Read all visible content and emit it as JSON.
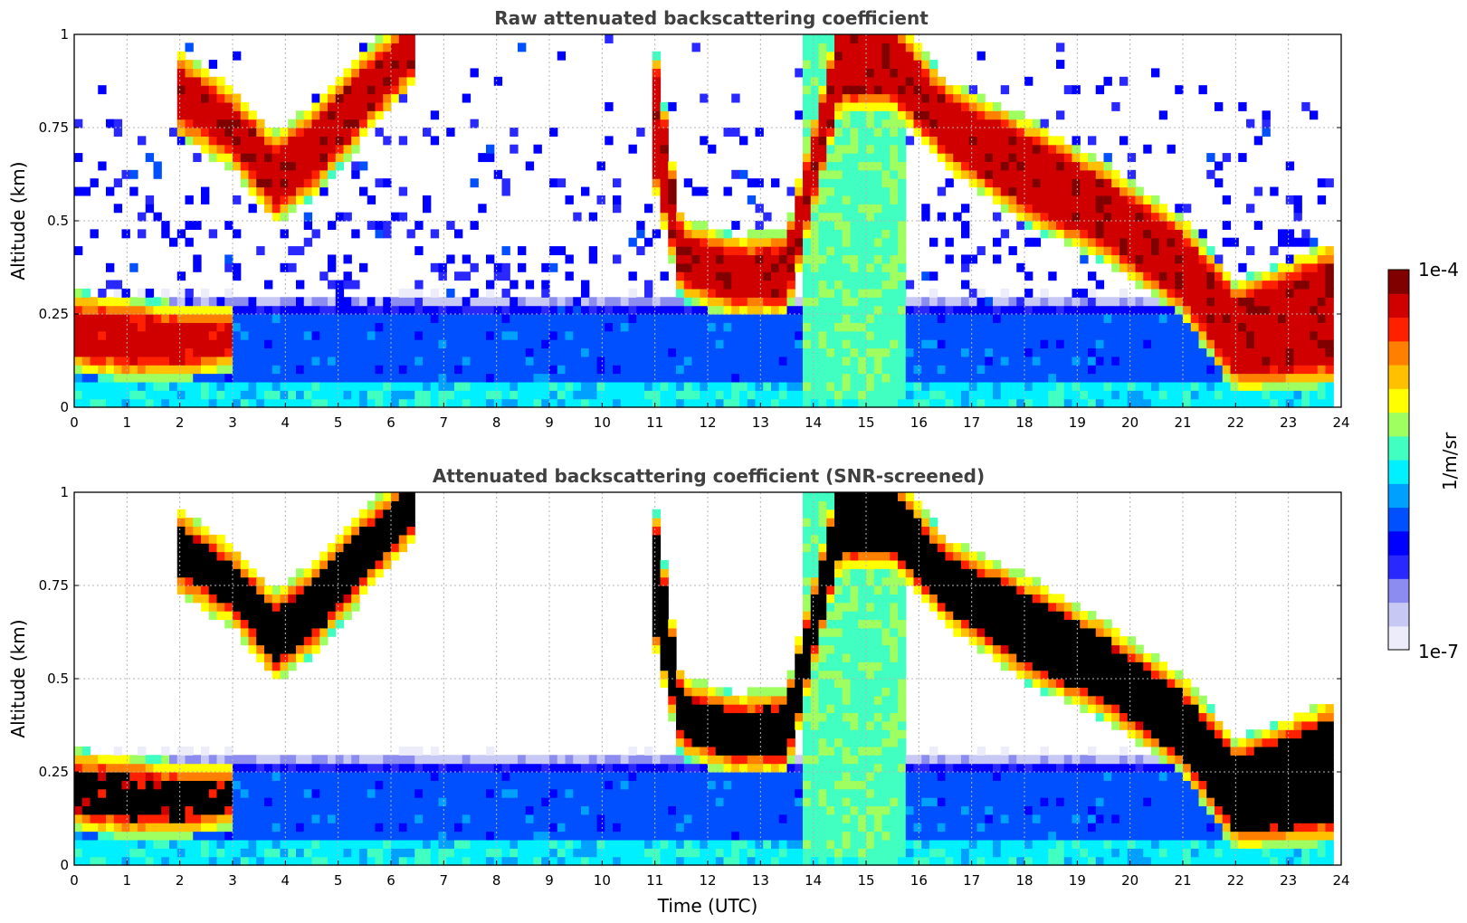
{
  "chart_data": [
    {
      "type": "heatmap",
      "title": "Raw attenuated backscattering coefficient",
      "xlabel": "",
      "ylabel": "Altitude (km)",
      "xlim": [
        0,
        24
      ],
      "ylim": [
        0,
        1
      ],
      "x_ticks": [
        "0",
        "1",
        "2",
        "3",
        "4",
        "5",
        "6",
        "7",
        "8",
        "9",
        "10",
        "11",
        "12",
        "13",
        "14",
        "15",
        "16",
        "17",
        "18",
        "19",
        "20",
        "21",
        "22",
        "23",
        "24"
      ],
      "y_ticks": [
        "0",
        "0.25",
        "0.5",
        "0.75",
        "1"
      ],
      "grid": true,
      "layers": [
        {
          "name": "background noise",
          "level": 0.32,
          "x": [
            0,
            24
          ],
          "y_bottom": [
            0,
            0
          ],
          "y_top": [
            0.25,
            0.25
          ]
        },
        {
          "name": "aerosol layer",
          "level": 0.9,
          "x": [
            0,
            1,
            2,
            3
          ],
          "y_bottom": [
            0.15,
            0.13,
            0.13,
            0.16
          ],
          "y_top": [
            0.25,
            0.24,
            0.22,
            0.22
          ]
        },
        {
          "name": "cloud 1",
          "level": 0.92,
          "x": [
            2.0,
            3.0,
            3.8,
            4.5,
            5.5,
            6.4
          ],
          "y_bottom": [
            0.78,
            0.7,
            0.55,
            0.62,
            0.78,
            0.92
          ],
          "y_top": [
            0.9,
            0.8,
            0.68,
            0.75,
            0.9,
            1.0
          ]
        },
        {
          "name": "cloud 2",
          "level": 0.92,
          "x": [
            10.9,
            11.5,
            12.5,
            13.5,
            14.5,
            15.5,
            16.5,
            18.0,
            19.5,
            21.0,
            22.0,
            23.8
          ],
          "y_bottom": [
            0.7,
            0.35,
            0.3,
            0.3,
            0.85,
            0.85,
            0.7,
            0.55,
            0.45,
            0.3,
            0.1,
            0.12
          ],
          "y_top": [
            1.0,
            0.45,
            0.4,
            0.42,
            1.0,
            1.0,
            0.82,
            0.72,
            0.6,
            0.45,
            0.28,
            0.38
          ]
        },
        {
          "name": "precipitation",
          "level": 0.55,
          "x": [
            13.8,
            15.8
          ],
          "y_bottom": [
            0.02,
            0.02
          ],
          "y_top": [
            1.0,
            1.0
          ]
        }
      ]
    },
    {
      "type": "heatmap",
      "title": "Attenuated backscattering coefficient (SNR-screened)",
      "xlabel": "Time (UTC)",
      "ylabel": "Altitude (km)",
      "xlim": [
        0,
        24
      ],
      "ylim": [
        0,
        1
      ],
      "x_ticks": [
        "0",
        "1",
        "2",
        "3",
        "4",
        "5",
        "6",
        "7",
        "8",
        "9",
        "10",
        "11",
        "12",
        "13",
        "14",
        "15",
        "16",
        "17",
        "18",
        "19",
        "20",
        "21",
        "22",
        "23",
        "24"
      ],
      "y_ticks": [
        "0",
        "0.25",
        "0.5",
        "0.75",
        "1"
      ],
      "grid": true,
      "saturated_color": "#000000"
    }
  ],
  "colorbar": {
    "label": "1/m/sr",
    "max_label": "1e-4",
    "min_label": "1e-7",
    "colors": [
      "#ececfa",
      "#c8c8f5",
      "#8c8cf0",
      "#2828ff",
      "#0000ff",
      "#0050ff",
      "#00a0ff",
      "#00f0ff",
      "#40ffc0",
      "#a0ff60",
      "#ffff00",
      "#ffc000",
      "#ff8000",
      "#ff2000",
      "#d00000",
      "#800000"
    ]
  }
}
